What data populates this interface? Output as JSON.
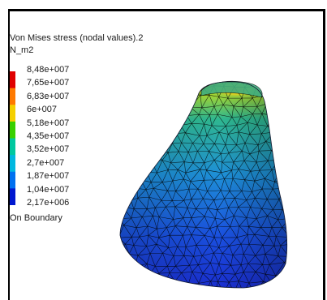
{
  "legend": {
    "title": "Von Mises stress (nodal values).2",
    "unit": "N_m2",
    "footer": "On Boundary",
    "labels": [
      "8,48e+007",
      "7,65e+007",
      "6,83e+007",
      "6e+007",
      "5,18e+007",
      "4,35e+007",
      "3,52e+007",
      "2,7e+007",
      "1,87e+007",
      "1,04e+007",
      "2,17e+006"
    ],
    "colors": [
      "#e00000",
      "#ff7a00",
      "#f5d000",
      "#38d000",
      "#00c8a0",
      "#00b8e0",
      "#0070f0",
      "#0018d0"
    ]
  },
  "colors": {
    "frame": "#000000",
    "background": "#ffffff",
    "mesh_lines": "#000000",
    "stress_high": "#f07a00",
    "stress_mid": "#2fb890",
    "stress_low": "#1a2fd0"
  }
}
